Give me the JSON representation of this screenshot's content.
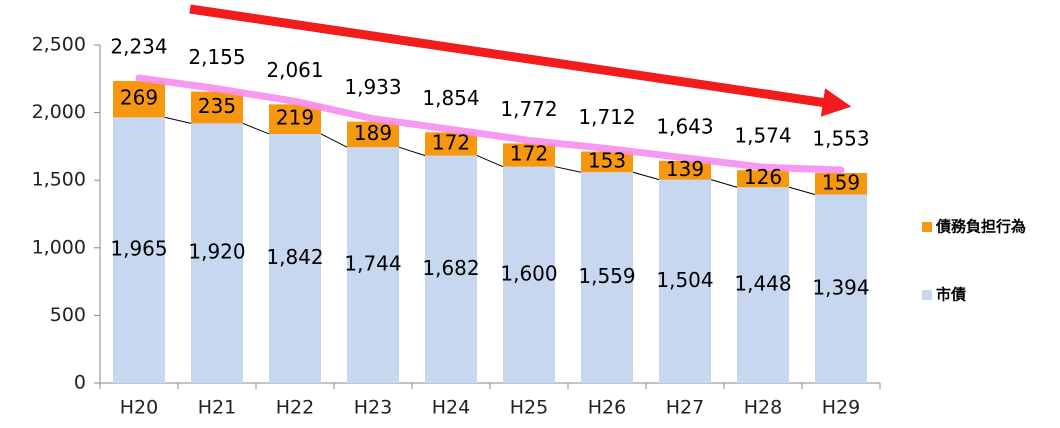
{
  "chart_data": {
    "type": "stacked_bar",
    "categories": [
      "H20",
      "H21",
      "H22",
      "H23",
      "H24",
      "H25",
      "H26",
      "H27",
      "H28",
      "H29"
    ],
    "series": [
      {
        "name": "市債",
        "color": "#c6d7ef",
        "values": [
          1965,
          1920,
          1842,
          1744,
          1682,
          1600,
          1559,
          1504,
          1448,
          1394
        ],
        "value_labels": [
          "1,965",
          "1,920",
          "1,842",
          "1,744",
          "1,682",
          "1,600",
          "1,559",
          "1,504",
          "1,448",
          "1,394"
        ]
      },
      {
        "name": "債務負担行為",
        "color": "#f7960f",
        "values": [
          269,
          235,
          219,
          189,
          172,
          172,
          153,
          139,
          126,
          159
        ]
      }
    ],
    "totals": [
      2234,
      2155,
      2061,
      1933,
      1854,
      1772,
      1712,
      1643,
      1574,
      1553
    ],
    "total_labels": [
      "2,234",
      "2,155",
      "2,061",
      "1,933",
      "1,854",
      "1,772",
      "1,712",
      "1,643",
      "1,574",
      "1,553"
    ],
    "ylim": [
      0,
      2500
    ],
    "yticks": [
      0,
      500,
      {
        "value": 1000,
        "label": "1,000"
      },
      {
        "value": 1500,
        "label": "1,500"
      },
      {
        "value": 2000,
        "label": "2,000"
      },
      {
        "value": 2500,
        "label": "2,500"
      }
    ],
    "grid": false
  }
}
